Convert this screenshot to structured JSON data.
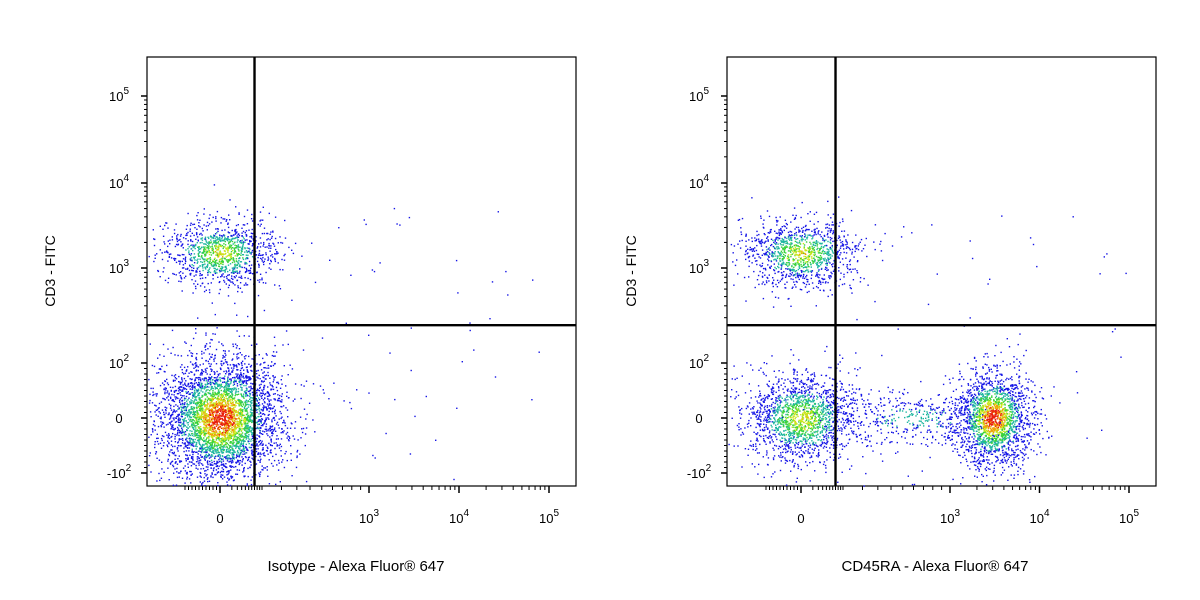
{
  "chart_data": [
    {
      "type": "scatter",
      "style": "density-dot plot (blue low density, green/yellow medium, red high)",
      "title": "",
      "xlabel": "Isotype - Alexa Fluor® 647",
      "ylabel": "CD3 - FITC",
      "x_scale": "biexponential",
      "y_scale": "biexponential",
      "x_ticks": [
        {
          "value": 0,
          "label": "0"
        },
        {
          "value": 1000,
          "label": "10",
          "sup": "3"
        },
        {
          "value": 10000,
          "label": "10",
          "sup": "4"
        },
        {
          "value": 100000,
          "label": "10",
          "sup": "5"
        }
      ],
      "y_ticks": [
        {
          "value": -100,
          "label": "-10",
          "sup": "2"
        },
        {
          "value": 0,
          "label": "0"
        },
        {
          "value": 100,
          "label": "10",
          "sup": "2"
        },
        {
          "value": 1000,
          "label": "10",
          "sup": "3"
        },
        {
          "value": 10000,
          "label": "10",
          "sup": "4"
        },
        {
          "value": 100000,
          "label": "10",
          "sup": "5"
        }
      ],
      "xlim": [
        -120,
        200000
      ],
      "ylim": [
        -130,
        250000
      ],
      "quadrant_gate": {
        "x": 70,
        "y": 250
      },
      "grid": false,
      "populations": [
        {
          "name": "",
          "x_center": 0,
          "y_center": 1500,
          "relative_events": 0.22,
          "density": "medium"
        },
        {
          "name": "",
          "x_center": 0,
          "y_center": 0,
          "relative_events": 0.78,
          "density": "high"
        }
      ]
    },
    {
      "type": "scatter",
      "style": "density-dot plot (blue low density, green/yellow medium, red high)",
      "title": "",
      "xlabel": "CD45RA - Alexa Fluor® 647",
      "ylabel": "CD3 - FITC",
      "x_scale": "biexponential",
      "y_scale": "biexponential",
      "x_ticks": [
        {
          "value": 0,
          "label": "0"
        },
        {
          "value": 1000,
          "label": "10",
          "sup": "3"
        },
        {
          "value": 10000,
          "label": "10",
          "sup": "4"
        },
        {
          "value": 100000,
          "label": "10",
          "sup": "5"
        }
      ],
      "y_ticks": [
        {
          "value": -100,
          "label": "-10",
          "sup": "2"
        },
        {
          "value": 0,
          "label": "0"
        },
        {
          "value": 100,
          "label": "10",
          "sup": "2"
        },
        {
          "value": 1000,
          "label": "10",
          "sup": "3"
        },
        {
          "value": 10000,
          "label": "10",
          "sup": "4"
        },
        {
          "value": 100000,
          "label": "10",
          "sup": "5"
        }
      ],
      "xlim": [
        -120,
        200000
      ],
      "ylim": [
        -130,
        250000
      ],
      "quadrant_gate": {
        "x": 70,
        "y": 250
      },
      "grid": false,
      "populations": [
        {
          "name": "",
          "x_center": 0,
          "y_center": 1500,
          "relative_events": 0.22,
          "density": "medium"
        },
        {
          "name": "",
          "x_center": 0,
          "y_center": 0,
          "relative_events": 0.33,
          "density": "medium"
        },
        {
          "name": "",
          "x_center": 3000,
          "y_center": 0,
          "relative_events": 0.37,
          "density": "high"
        },
        {
          "name": "",
          "x_center": 600,
          "y_center": 0,
          "relative_events": 0.08,
          "density": "low"
        }
      ]
    }
  ]
}
